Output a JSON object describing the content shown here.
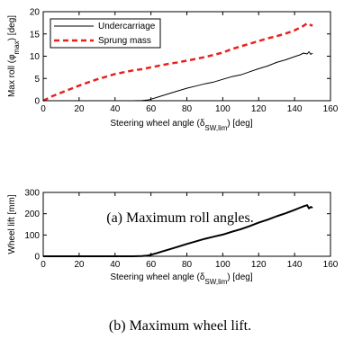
{
  "chart_data": [
    {
      "type": "line",
      "caption": "(a) Maximum roll angles.",
      "xlabel": "Steering wheel angle (δSW,lim) [deg]",
      "xlabel_main": "Steering wheel angle (δ",
      "xlabel_sub": "SW,lim",
      "xlabel_end": ") [deg]",
      "ylabel": "Max roll (φmax) [deg]",
      "ylabel_main": "Max roll (φ",
      "ylabel_sub": "max",
      "ylabel_end": ") [deg]",
      "xlim": [
        0,
        160
      ],
      "ylim": [
        0,
        20
      ],
      "xticks": [
        0,
        20,
        40,
        60,
        80,
        100,
        120,
        140,
        160
      ],
      "yticks": [
        0,
        5,
        10,
        15,
        20
      ],
      "grid": false,
      "legend": "top-left",
      "series": [
        {
          "name": "Undercarriage",
          "color": "#000000",
          "style": "solid",
          "x": [
            0,
            20,
            40,
            50,
            55,
            58,
            60,
            63,
            66,
            70,
            75,
            80,
            85,
            90,
            95,
            100,
            105,
            110,
            115,
            120,
            125,
            130,
            135,
            140,
            143,
            145,
            147,
            148,
            149,
            150
          ],
          "y": [
            0,
            0,
            0,
            0,
            0.05,
            0.15,
            0.35,
            0.7,
            1.1,
            1.6,
            2.2,
            2.8,
            3.3,
            3.8,
            4.2,
            4.8,
            5.4,
            5.8,
            6.5,
            7.2,
            7.8,
            8.6,
            9.2,
            9.9,
            10.3,
            10.7,
            10.5,
            11.0,
            10.4,
            10.7
          ]
        },
        {
          "name": "Sprung mass",
          "color": "#e8211d",
          "style": "dashed",
          "x": [
            0,
            5,
            10,
            15,
            20,
            25,
            30,
            35,
            40,
            45,
            50,
            55,
            60,
            65,
            70,
            75,
            80,
            85,
            90,
            95,
            100,
            105,
            110,
            115,
            120,
            125,
            130,
            135,
            140,
            145,
            147,
            150
          ],
          "y": [
            0,
            1.0,
            1.8,
            2.6,
            3.4,
            4.1,
            4.8,
            5.4,
            6.0,
            6.4,
            6.8,
            7.1,
            7.5,
            7.9,
            8.3,
            8.6,
            9.0,
            9.4,
            9.8,
            10.3,
            10.8,
            11.6,
            12.2,
            12.8,
            13.4,
            14.0,
            14.5,
            15.1,
            15.8,
            16.8,
            17.4,
            16.8
          ]
        }
      ]
    },
    {
      "type": "line",
      "caption": "(b) Maximum wheel lift.",
      "xlabel": "Steering wheel angle (δSW,lim) [deg]",
      "xlabel_main": "Steering wheel angle (δ",
      "xlabel_sub": "SW,lim",
      "xlabel_end": ") [deg]",
      "ylabel": "Wheel lift [mm]",
      "xlim": [
        0,
        160
      ],
      "ylim": [
        0,
        300
      ],
      "xticks": [
        0,
        20,
        40,
        60,
        80,
        100,
        120,
        140,
        160
      ],
      "yticks": [
        0,
        100,
        200,
        300
      ],
      "grid": false,
      "series": [
        {
          "color": "#000000",
          "style": "solid",
          "x": [
            0,
            20,
            40,
            50,
            55,
            58,
            60,
            63,
            66,
            70,
            75,
            80,
            85,
            90,
            95,
            100,
            105,
            110,
            115,
            120,
            125,
            130,
            135,
            140,
            143,
            145,
            147,
            148,
            149,
            150
          ],
          "y": [
            0,
            0,
            0,
            0,
            1,
            3,
            7,
            14,
            22,
            32,
            45,
            58,
            70,
            82,
            92,
            102,
            115,
            127,
            142,
            158,
            172,
            188,
            202,
            218,
            228,
            235,
            240,
            225,
            232,
            228
          ]
        }
      ]
    }
  ]
}
